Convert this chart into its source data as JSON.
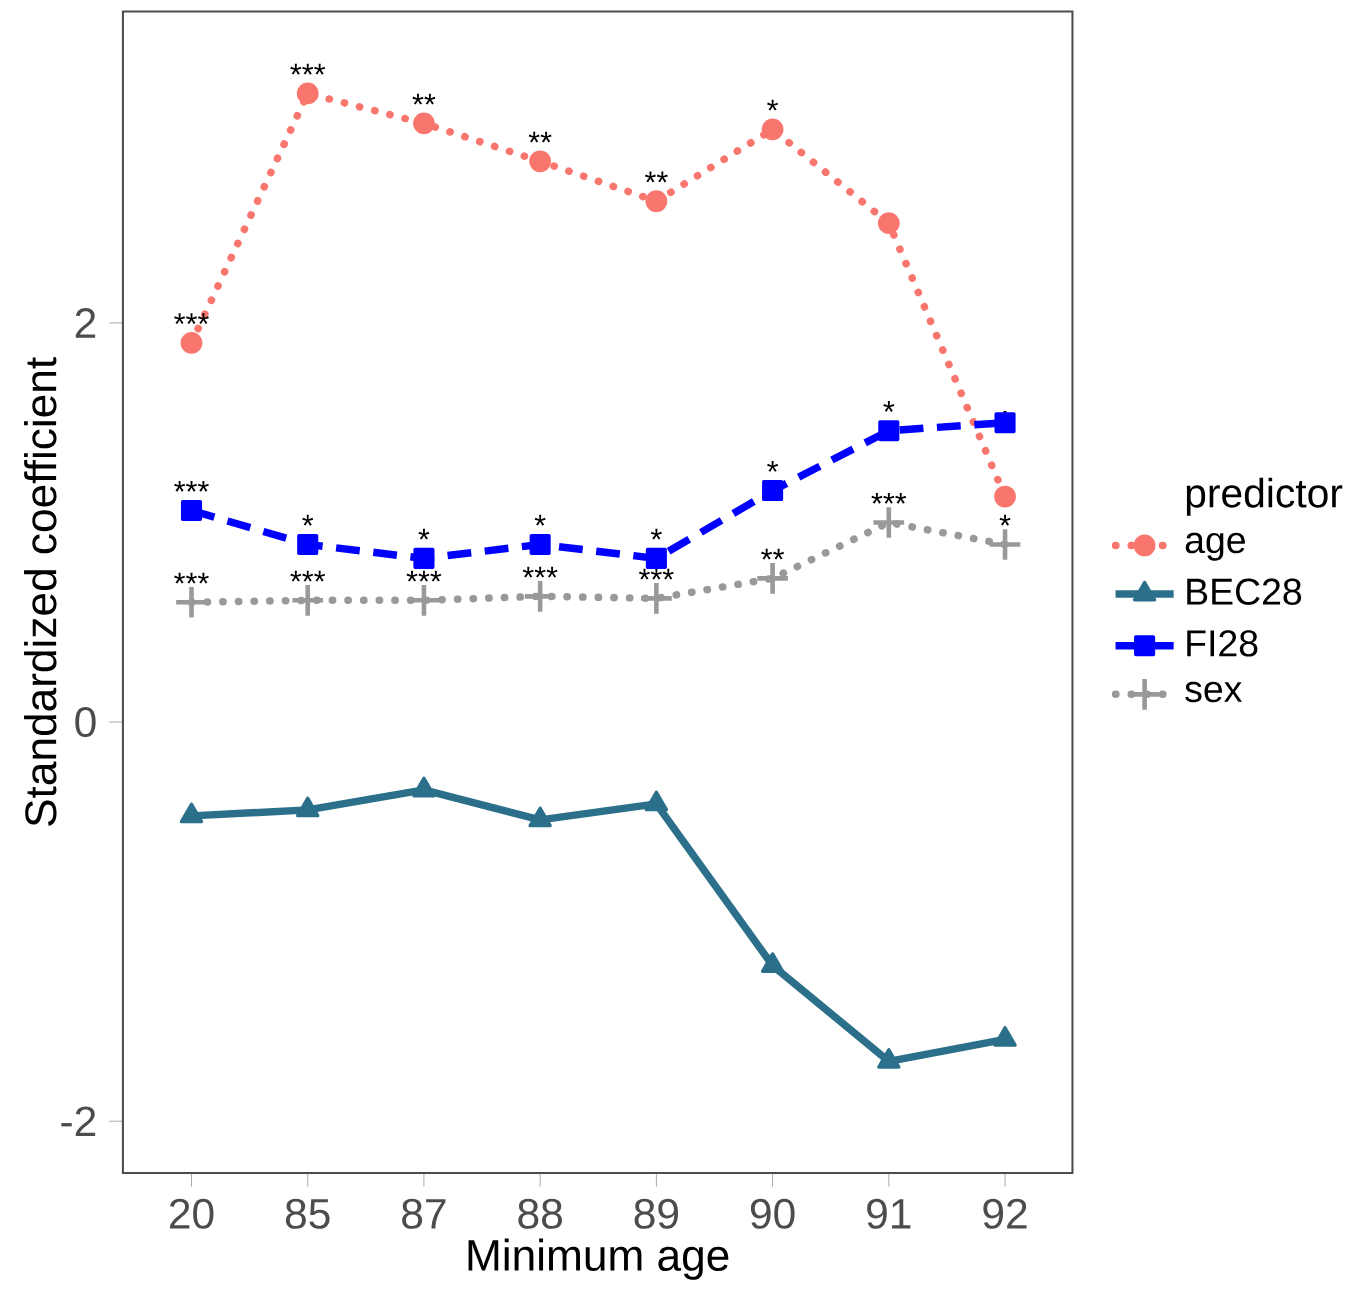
{
  "chart_data": {
    "type": "line",
    "xlabel": "Minimum age",
    "ylabel": "Standardized coefficient",
    "legend_title": "predictor",
    "legend": "right",
    "grid": false,
    "categories": [
      "20",
      "85",
      "87",
      "88",
      "89",
      "90",
      "91",
      "92"
    ],
    "ylim": [
      -2.26,
      3.56
    ],
    "yticks": [
      -2,
      0,
      2
    ],
    "series": [
      {
        "name": "age",
        "color": "#f8766d",
        "marker": "circle",
        "line_style": "dotted",
        "values": [
          1.9,
          3.15,
          3.0,
          2.81,
          2.61,
          2.97,
          2.5,
          1.13
        ]
      },
      {
        "name": "BEC28",
        "color": "#2b6f8a",
        "marker": "triangle",
        "line_style": "solid",
        "values": [
          -0.47,
          -0.44,
          -0.34,
          -0.49,
          -0.41,
          -1.22,
          -1.7,
          -1.59
        ]
      },
      {
        "name": "FI28",
        "color": "#0000ff",
        "marker": "square",
        "line_style": "dashed",
        "values": [
          1.06,
          0.89,
          0.82,
          0.89,
          0.82,
          1.16,
          1.46,
          1.5
        ]
      },
      {
        "name": "sex",
        "color": "#999999",
        "marker": "cross",
        "line_style": "dotted",
        "values": [
          0.6,
          0.61,
          0.61,
          0.63,
          0.62,
          0.72,
          1.0,
          0.89
        ]
      }
    ],
    "annotations": [
      {
        "text": "***",
        "x": "20",
        "y": 1.9
      },
      {
        "text": "***",
        "x": "85",
        "y": 3.15
      },
      {
        "text": "**",
        "x": "87",
        "y": 3.0
      },
      {
        "text": "**",
        "x": "88",
        "y": 2.81
      },
      {
        "text": "**",
        "x": "89",
        "y": 2.61
      },
      {
        "text": "*",
        "x": "90",
        "y": 2.97
      },
      {
        "text": "***",
        "x": "20",
        "y": 1.06
      },
      {
        "text": "*",
        "x": "85",
        "y": 0.89
      },
      {
        "text": "*",
        "x": "87",
        "y": 0.82
      },
      {
        "text": "*",
        "x": "88",
        "y": 0.89
      },
      {
        "text": "*",
        "x": "89",
        "y": 0.82
      },
      {
        "text": "*",
        "x": "90",
        "y": 1.16
      },
      {
        "text": "*",
        "x": "91",
        "y": 1.46
      },
      {
        "text": ".",
        "x": "92",
        "y": 1.5
      },
      {
        "text": "***",
        "x": "20",
        "y": 0.6
      },
      {
        "text": "***",
        "x": "85",
        "y": 0.61
      },
      {
        "text": "***",
        "x": "87",
        "y": 0.61
      },
      {
        "text": "***",
        "x": "88",
        "y": 0.63
      },
      {
        "text": "***",
        "x": "89",
        "y": 0.62
      },
      {
        "text": "**",
        "x": "90",
        "y": 0.72
      },
      {
        "text": "***",
        "x": "91",
        "y": 1.0
      },
      {
        "text": "*",
        "x": "92",
        "y": 0.89
      }
    ]
  }
}
